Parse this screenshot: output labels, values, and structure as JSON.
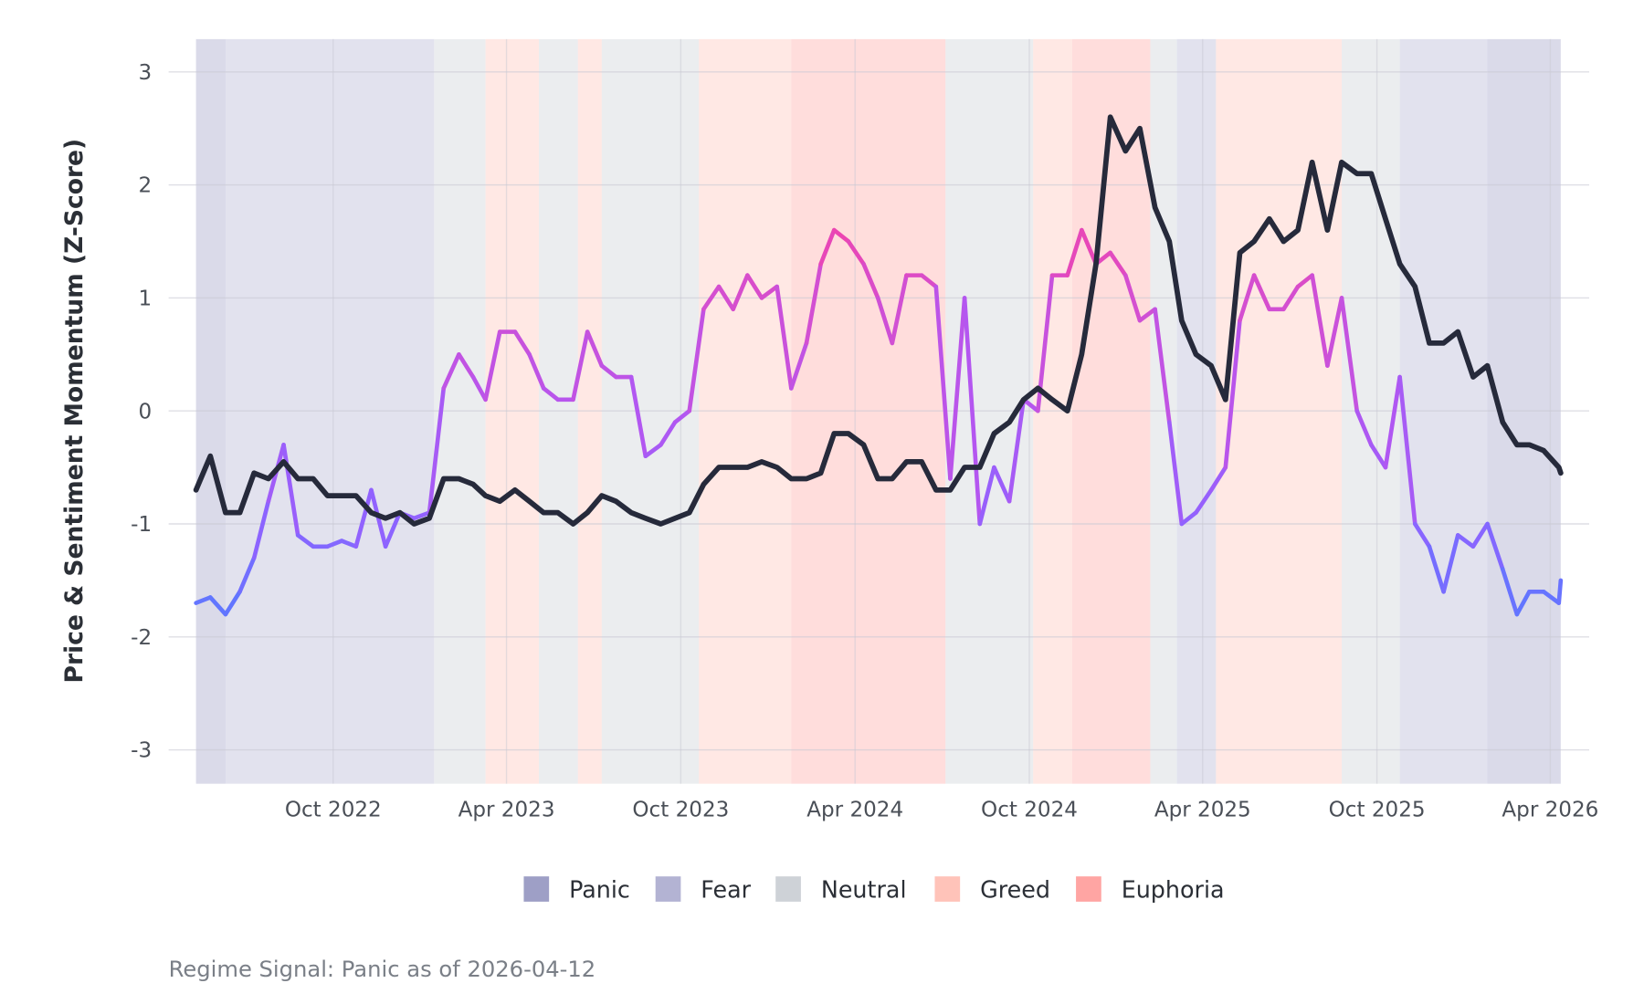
{
  "chart_data": {
    "type": "line",
    "title": "",
    "xlabel": "",
    "ylabel": "Price & Sentiment Momentum (Z-Score)",
    "ylim": [
      -3.3,
      3.3
    ],
    "xlim": [
      "2022-05-10",
      "2026-04-12"
    ],
    "yticks": [
      3,
      2,
      1,
      0,
      -1,
      -2,
      -3
    ],
    "ytick_labels": [
      "3",
      "2",
      "1",
      "0",
      "-1",
      "-2",
      "-3"
    ],
    "xticks": [
      "2022-10-01",
      "2023-04-01",
      "2023-10-01",
      "2024-04-01",
      "2024-10-01",
      "2025-04-01",
      "2025-10-01",
      "2026-04-01"
    ],
    "xtick_labels": [
      "Oct 2022",
      "Apr 2023",
      "Oct 2023",
      "Apr 2024",
      "Oct 2024",
      "Apr 2025",
      "Oct 2025",
      "Apr 2026"
    ],
    "grid": true,
    "legend_position": "bottom",
    "x": [
      "2022-05-10",
      "2022-05-25",
      "2022-06-10",
      "2022-06-25",
      "2022-07-10",
      "2022-07-25",
      "2022-08-10",
      "2022-08-25",
      "2022-09-10",
      "2022-09-25",
      "2022-10-10",
      "2022-10-25",
      "2022-11-10",
      "2022-11-25",
      "2022-12-10",
      "2022-12-25",
      "2023-01-10",
      "2023-01-25",
      "2023-02-10",
      "2023-02-25",
      "2023-03-10",
      "2023-03-25",
      "2023-04-10",
      "2023-04-25",
      "2023-05-10",
      "2023-05-25",
      "2023-06-10",
      "2023-06-25",
      "2023-07-10",
      "2023-07-25",
      "2023-08-10",
      "2023-08-25",
      "2023-09-10",
      "2023-09-25",
      "2023-10-10",
      "2023-10-25",
      "2023-11-10",
      "2023-11-25",
      "2023-12-10",
      "2023-12-25",
      "2024-01-10",
      "2024-01-25",
      "2024-02-10",
      "2024-02-25",
      "2024-03-10",
      "2024-03-25",
      "2024-04-10",
      "2024-04-25",
      "2024-05-10",
      "2024-05-25",
      "2024-06-10",
      "2024-06-25",
      "2024-07-10",
      "2024-07-25",
      "2024-08-10",
      "2024-08-25",
      "2024-09-10",
      "2024-09-25",
      "2024-10-10",
      "2024-10-25",
      "2024-11-10",
      "2024-11-25",
      "2024-12-10",
      "2024-12-25",
      "2025-01-10",
      "2025-01-25",
      "2025-02-10",
      "2025-02-25",
      "2025-03-10",
      "2025-03-25",
      "2025-04-10",
      "2025-04-25",
      "2025-05-10",
      "2025-05-25",
      "2025-06-10",
      "2025-06-25",
      "2025-07-10",
      "2025-07-25",
      "2025-08-10",
      "2025-08-25",
      "2025-09-10",
      "2025-09-25",
      "2025-10-10",
      "2025-10-25",
      "2025-11-10",
      "2025-11-25",
      "2025-12-10",
      "2025-12-25",
      "2026-01-10",
      "2026-01-25",
      "2026-02-10",
      "2026-02-25",
      "2026-03-10",
      "2026-03-25",
      "2026-04-10",
      "2026-04-12"
    ],
    "series": [
      {
        "role": "price",
        "color": "#262a3b",
        "values": [
          -0.7,
          -0.4,
          -0.9,
          -0.9,
          -0.55,
          -0.6,
          -0.45,
          -0.6,
          -0.6,
          -0.75,
          -0.75,
          -0.75,
          -0.9,
          -0.95,
          -0.9,
          -1.0,
          -0.95,
          -0.6,
          -0.6,
          -0.65,
          -0.75,
          -0.8,
          -0.7,
          -0.8,
          -0.9,
          -0.9,
          -1.0,
          -0.9,
          -0.75,
          -0.8,
          -0.9,
          -0.95,
          -1.0,
          -0.95,
          -0.9,
          -0.65,
          -0.5,
          -0.5,
          -0.5,
          -0.45,
          -0.5,
          -0.6,
          -0.6,
          -0.55,
          -0.2,
          -0.2,
          -0.3,
          -0.6,
          -0.6,
          -0.45,
          -0.45,
          -0.7,
          -0.7,
          -0.5,
          -0.5,
          -0.2,
          -0.1,
          0.1,
          0.2,
          0.1,
          0.0,
          0.5,
          1.3,
          2.6,
          2.3,
          2.5,
          1.8,
          1.5,
          0.8,
          0.5,
          0.4,
          0.1,
          1.4,
          1.5,
          1.7,
          1.5,
          1.6,
          2.2,
          1.6,
          2.2,
          2.1,
          2.1,
          1.7,
          1.3,
          1.1,
          0.6,
          0.6,
          0.7,
          0.3,
          0.4,
          -0.1,
          -0.3,
          -0.3,
          -0.35,
          -0.5,
          -0.55
        ]
      },
      {
        "role": "sentiment",
        "color_scale": [
          "#4f7dff",
          "#8f63ff",
          "#b456f0",
          "#d44fd0",
          "#ff3d9a"
        ],
        "values": [
          -1.7,
          -1.65,
          -1.8,
          -1.6,
          -1.3,
          -0.8,
          -0.3,
          -1.1,
          -1.2,
          -1.2,
          -1.15,
          -1.2,
          -0.7,
          -1.2,
          -0.9,
          -0.95,
          -0.9,
          0.2,
          0.5,
          0.3,
          0.1,
          0.7,
          0.7,
          0.5,
          0.2,
          0.1,
          0.1,
          0.7,
          0.4,
          0.3,
          0.3,
          -0.4,
          -0.3,
          -0.1,
          0.0,
          0.9,
          1.1,
          0.9,
          1.2,
          1.0,
          1.1,
          0.2,
          0.6,
          1.3,
          1.6,
          1.5,
          1.3,
          1.0,
          0.6,
          1.2,
          1.2,
          1.1,
          -0.6,
          1.0,
          -1.0,
          -0.5,
          -0.8,
          0.1,
          0.0,
          1.2,
          1.2,
          1.6,
          1.3,
          1.4,
          1.2,
          0.8,
          0.9,
          -0.1,
          -1.0,
          -0.9,
          -0.7,
          -0.5,
          0.8,
          1.2,
          0.9,
          0.9,
          1.1,
          1.2,
          0.4,
          1.0,
          0.0,
          -0.3,
          -0.5,
          0.3,
          -1.0,
          -1.2,
          -1.6,
          -1.1,
          -1.2,
          -1.0,
          -1.4,
          -1.8,
          -1.6,
          -1.6,
          -1.7,
          -1.5
        ]
      }
    ],
    "regimes": [
      {
        "start": "2022-05-10",
        "end": "2022-06-10",
        "regime": "Panic"
      },
      {
        "start": "2022-06-10",
        "end": "2023-01-15",
        "regime": "Fear"
      },
      {
        "start": "2023-01-15",
        "end": "2023-03-10",
        "regime": "Neutral"
      },
      {
        "start": "2023-03-10",
        "end": "2023-05-05",
        "regime": "Greed"
      },
      {
        "start": "2023-05-05",
        "end": "2023-06-15",
        "regime": "Neutral"
      },
      {
        "start": "2023-06-15",
        "end": "2023-07-10",
        "regime": "Greed"
      },
      {
        "start": "2023-07-10",
        "end": "2023-10-20",
        "regime": "Neutral"
      },
      {
        "start": "2023-10-20",
        "end": "2024-01-25",
        "regime": "Greed"
      },
      {
        "start": "2024-01-25",
        "end": "2024-07-05",
        "regime": "Euphoria"
      },
      {
        "start": "2024-07-05",
        "end": "2024-10-05",
        "regime": "Neutral"
      },
      {
        "start": "2024-10-05",
        "end": "2024-11-15",
        "regime": "Greed"
      },
      {
        "start": "2024-11-15",
        "end": "2025-02-05",
        "regime": "Euphoria"
      },
      {
        "start": "2025-02-05",
        "end": "2025-03-05",
        "regime": "Neutral"
      },
      {
        "start": "2025-03-05",
        "end": "2025-04-15",
        "regime": "Fear"
      },
      {
        "start": "2025-04-15",
        "end": "2025-08-25",
        "regime": "Greed"
      },
      {
        "start": "2025-08-25",
        "end": "2025-10-25",
        "regime": "Neutral"
      },
      {
        "start": "2025-10-25",
        "end": "2026-01-25",
        "regime": "Fear"
      },
      {
        "start": "2026-01-25",
        "end": "2026-04-12",
        "regime": "Panic"
      }
    ],
    "legend": [
      {
        "label": "Panic",
        "color": "#9e9fc6"
      },
      {
        "label": "Fear",
        "color": "#b3b3d3"
      },
      {
        "label": "Neutral",
        "color": "#ced2d7"
      },
      {
        "label": "Greed",
        "color": "#ffc3b9"
      },
      {
        "label": "Euphoria",
        "color": "#ffa5a3"
      }
    ]
  },
  "caption": "Regime Signal: Panic as of 2026-04-12"
}
